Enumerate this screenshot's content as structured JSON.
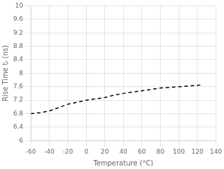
{
  "chart_data": {
    "type": "line",
    "xlabel": "Temperature (°C)",
    "ylabel": "Rise Time tᵣ (ns)",
    "x": [
      -60,
      -50,
      -40,
      -30,
      -20,
      -10,
      0,
      10,
      20,
      30,
      40,
      50,
      60,
      70,
      80,
      90,
      100,
      110,
      120,
      125
    ],
    "values": [
      6.8,
      6.83,
      6.88,
      6.98,
      7.08,
      7.14,
      7.2,
      7.24,
      7.28,
      7.35,
      7.4,
      7.44,
      7.48,
      7.52,
      7.56,
      7.58,
      7.6,
      7.62,
      7.64,
      7.66
    ],
    "xlim": [
      -60,
      140
    ],
    "ylim": [
      6,
      10
    ],
    "xticks": [
      -60,
      -40,
      -20,
      0,
      20,
      40,
      60,
      80,
      100,
      120,
      140
    ],
    "yticks": [
      6,
      6.4,
      6.8,
      7.2,
      7.6,
      8.0,
      8.4,
      8.8,
      9.2,
      9.6,
      10
    ],
    "color": "#000000",
    "line_style": "dashed",
    "grid": true
  }
}
